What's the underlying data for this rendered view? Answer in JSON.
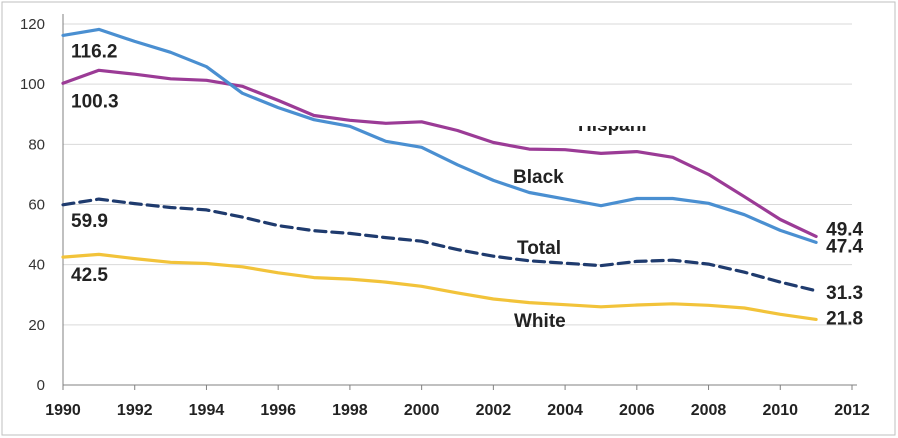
{
  "chart_data": {
    "type": "line",
    "title": "",
    "xlabel": "",
    "ylabel": "",
    "xlim": [
      1990,
      2012
    ],
    "ylim": [
      0,
      120
    ],
    "x_ticks": [
      "1990",
      "1992",
      "1994",
      "1996",
      "1998",
      "2000",
      "2002",
      "2004",
      "2006",
      "2008",
      "2010",
      "2012"
    ],
    "y_ticks": [
      "0",
      "20",
      "40",
      "60",
      "80",
      "100",
      "120"
    ],
    "grid": true,
    "x": [
      1990,
      1991,
      1992,
      1993,
      1994,
      1995,
      1996,
      1997,
      1998,
      1999,
      2000,
      2001,
      2002,
      2003,
      2004,
      2005,
      2006,
      2007,
      2008,
      2009,
      2010,
      2011
    ],
    "series": [
      {
        "name": "Hispani",
        "color": "#9b3b96",
        "dash": "solid",
        "values": [
          100.3,
          104.6,
          103.3,
          101.8,
          101.3,
          99.3,
          94.6,
          89.6,
          88.0,
          87.0,
          87.5,
          84.6,
          80.6,
          78.4,
          78.2,
          77.0,
          77.6,
          75.7,
          70.0,
          62.6,
          55.0,
          49.4
        ],
        "start_label": "100.3",
        "end_label": "49.4"
      },
      {
        "name": "Black",
        "color": "#4a8fd1",
        "dash": "solid",
        "values": [
          116.2,
          118.2,
          114.2,
          110.6,
          105.8,
          97.0,
          92.2,
          88.2,
          86.0,
          81.0,
          79.0,
          73.2,
          68.0,
          64.0,
          61.8,
          59.6,
          62.0,
          62.0,
          60.4,
          56.6,
          51.4,
          47.4
        ],
        "start_label": "116.2",
        "end_label": "47.4"
      },
      {
        "name": "Total",
        "color": "#1f3b6e",
        "dash": "dashed",
        "values": [
          59.9,
          61.8,
          60.3,
          59.0,
          58.2,
          55.8,
          53.0,
          51.3,
          50.4,
          49.0,
          47.8,
          45.0,
          42.8,
          41.3,
          40.5,
          39.7,
          41.1,
          41.5,
          40.2,
          37.5,
          34.2,
          31.3
        ],
        "start_label": "59.9",
        "end_label": "31.3"
      },
      {
        "name": "White",
        "color": "#f2c33a",
        "dash": "solid",
        "values": [
          42.5,
          43.4,
          42.0,
          40.8,
          40.4,
          39.3,
          37.3,
          35.7,
          35.2,
          34.2,
          32.8,
          30.6,
          28.6,
          27.4,
          26.7,
          26.0,
          26.6,
          27.0,
          26.5,
          25.6,
          23.5,
          21.8
        ],
        "start_label": "42.5",
        "end_label": "21.8"
      }
    ]
  }
}
